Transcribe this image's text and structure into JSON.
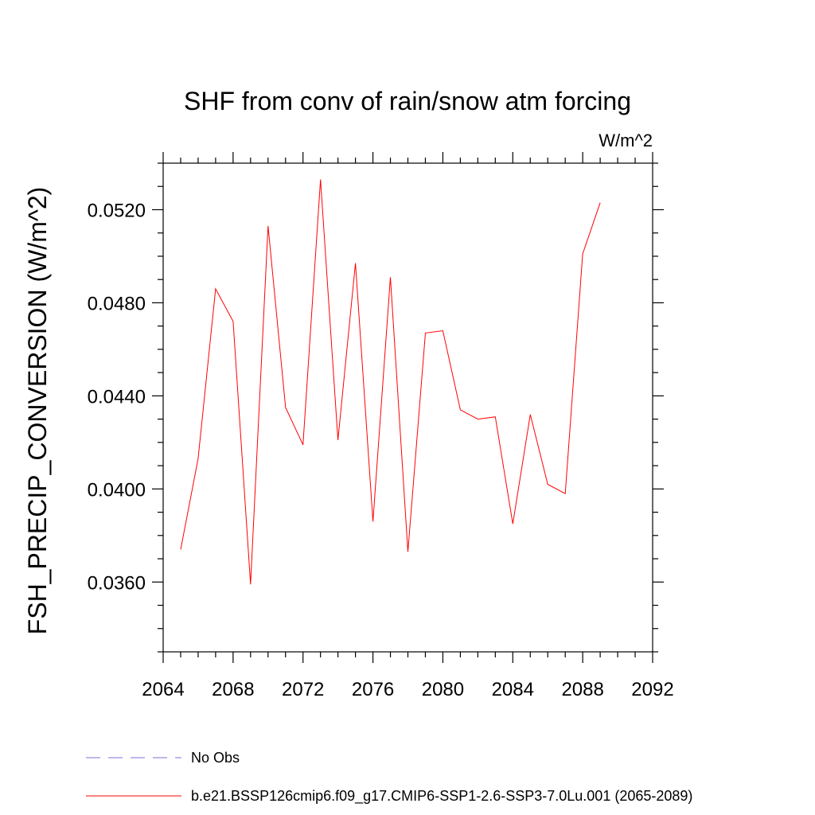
{
  "chart_data": {
    "type": "line",
    "title": "SHF from conv of rain/snow atm forcing",
    "units": "W/m^2",
    "ylabel": "FSH_PRECIP_CONVERSION  (W/m^2)",
    "xlabel": "",
    "xlim": [
      2064,
      2092
    ],
    "ylim": [
      0.033,
      0.054
    ],
    "x_ticks": [
      2064,
      2068,
      2072,
      2076,
      2080,
      2084,
      2088,
      2092
    ],
    "x_tick_labels": [
      "2064",
      "2068",
      "2072",
      "2076",
      "2080",
      "2084",
      "2088",
      "2092"
    ],
    "y_ticks": [
      0.036,
      0.04,
      0.044,
      0.048,
      0.052
    ],
    "y_tick_labels": [
      "0.0360",
      "0.0400",
      "0.0440",
      "0.0480",
      "0.0520"
    ],
    "x_minor_step": 1,
    "y_minor_step": 0.001,
    "grid": false,
    "legend_position": "bottom",
    "series": [
      {
        "name": "b.e21.BSSP126cmip6.f09_g17.CMIP6-SSP1-2.6-SSP3-7.0Lu.001 (2065-2089)",
        "color": "#ff0000",
        "dash": "solid",
        "x": [
          2065,
          2066,
          2067,
          2068,
          2069,
          2070,
          2071,
          2072,
          2073,
          2074,
          2075,
          2076,
          2077,
          2078,
          2079,
          2080,
          2081,
          2082,
          2083,
          2084,
          2085,
          2086,
          2087,
          2088,
          2089
        ],
        "y": [
          0.0374,
          0.0413,
          0.0486,
          0.0472,
          0.0359,
          0.0513,
          0.0435,
          0.0419,
          0.0533,
          0.0421,
          0.0497,
          0.0386,
          0.0491,
          0.0373,
          0.0467,
          0.0468,
          0.0434,
          0.043,
          0.0431,
          0.0385,
          0.0432,
          0.0402,
          0.0398,
          0.0501,
          0.0523
        ]
      },
      {
        "name": "No Obs",
        "color": "#7b6fd6",
        "dash": "dashed",
        "x": [],
        "y": []
      }
    ]
  },
  "legend": {
    "entries": [
      {
        "label": "No Obs",
        "color": "#7b6fd6",
        "dash": "dashed"
      },
      {
        "label": "b.e21.BSSP126cmip6.f09_g17.CMIP6-SSP1-2.6-SSP3-7.0Lu.001 (2065-2089)",
        "color": "#ff0000",
        "dash": "solid"
      }
    ]
  }
}
